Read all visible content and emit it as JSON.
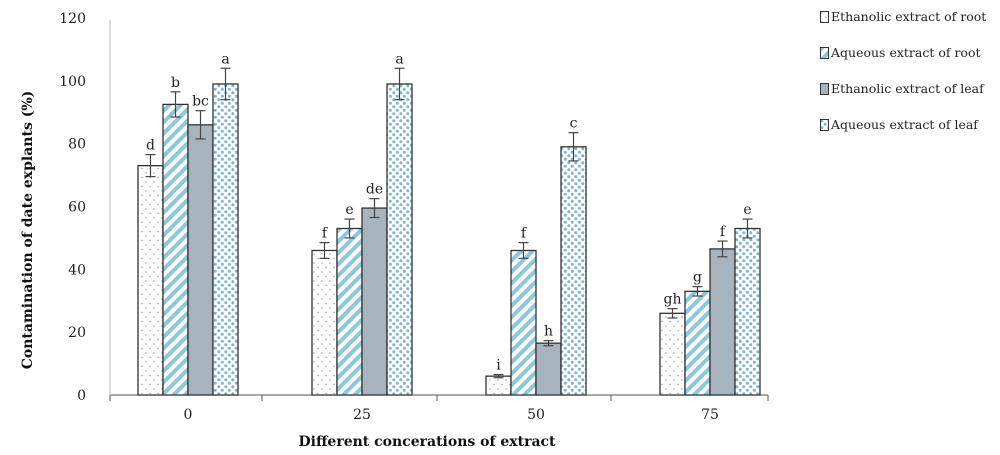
{
  "chart_data": {
    "type": "bar",
    "xlabel": "Different concerations of extract",
    "ylabel": "Contamination of date explants (%)",
    "ylim": [
      0,
      120
    ],
    "yticks": [
      0,
      20,
      40,
      60,
      80,
      100,
      120
    ],
    "categories": [
      "0",
      "25",
      "50",
      "75"
    ],
    "grid": false,
    "legend_position": "right",
    "series": [
      {
        "name": "Ethanolic extract of root",
        "pattern": "dots",
        "values": [
          73,
          46,
          6,
          26
        ],
        "errors": [
          3.5,
          2.5,
          0.5,
          1.5
        ],
        "labels": [
          "d",
          "f",
          "i",
          "gh"
        ]
      },
      {
        "name": "Aqueous extract of root",
        "pattern": "stripes",
        "values": [
          92.5,
          53,
          46,
          33
        ],
        "errors": [
          4,
          3,
          2.5,
          1.5
        ],
        "labels": [
          "b",
          "e",
          "f",
          "g"
        ]
      },
      {
        "name": "Ethanolic extract of leaf",
        "pattern": "solid",
        "values": [
          86,
          59.5,
          16.5,
          46.5
        ],
        "errors": [
          4.5,
          3,
          0.8,
          2.5
        ],
        "labels": [
          "bc",
          "de",
          "h",
          "f"
        ]
      },
      {
        "name": "Aqueous extract of leaf",
        "pattern": "bubbles",
        "values": [
          99,
          99,
          79,
          53
        ],
        "errors": [
          5,
          5,
          4.5,
          3
        ],
        "labels": [
          "a",
          "a",
          "c",
          "e"
        ]
      }
    ],
    "colors": {
      "stripe": "#8cc8dc",
      "solid": "#a8b4bd",
      "bubble": "#7fb3cf",
      "dot": "#999999",
      "outline": "#333333"
    }
  }
}
